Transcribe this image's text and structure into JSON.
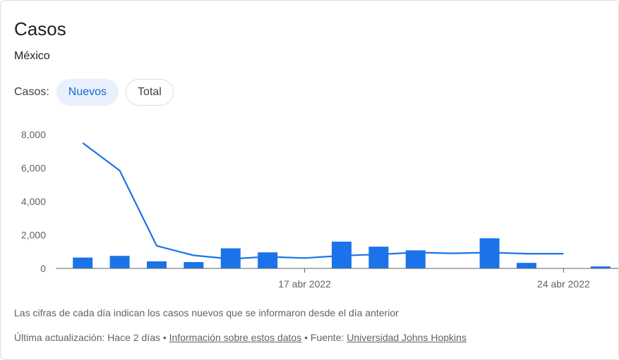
{
  "card": {
    "title": "Casos",
    "subtitle": "México"
  },
  "tabs": {
    "label": "Casos:",
    "items": [
      {
        "label": "Nuevos",
        "active": true
      },
      {
        "label": "Total",
        "active": false
      }
    ]
  },
  "chart_data": {
    "type": "bar",
    "x": [
      "11 abr 2022",
      "12 abr 2022",
      "13 abr 2022",
      "14 abr 2022",
      "15 abr 2022",
      "16 abr 2022",
      "17 abr 2022",
      "18 abr 2022",
      "19 abr 2022",
      "20 abr 2022",
      "21 abr 2022",
      "22 abr 2022",
      "23 abr 2022",
      "24 abr 2022",
      "25 abr 2022"
    ],
    "series": [
      {
        "type": "bar",
        "values": [
          650,
          750,
          420,
          380,
          1200,
          960,
          0,
          1600,
          1300,
          1080,
          0,
          1800,
          330,
          0,
          120
        ],
        "color": "#1a73e8"
      },
      {
        "type": "line",
        "values": [
          7500,
          5850,
          1350,
          780,
          570,
          700,
          620,
          760,
          840,
          950,
          900,
          950,
          880,
          880,
          null
        ],
        "color": "#1a73e8"
      }
    ],
    "ylim": [
      0,
      8000
    ],
    "yticks": [
      0,
      2000,
      4000,
      6000,
      8000
    ],
    "ytick_labels": [
      "0",
      "2,000",
      "4,000",
      "6,000",
      "8,000"
    ],
    "xtick_labels": [
      {
        "index": 6,
        "label": "17 abr 2022"
      },
      {
        "index": 13,
        "label": "24 abr 2022"
      }
    ],
    "grid": false
  },
  "note": "Las cifras de cada día indican los casos nuevos que se informaron desde el día anterior",
  "footer": {
    "prefix": "Última actualización: Hace 2 días • ",
    "info_link": "Información sobre estos datos",
    "middle": " • Fuente: ",
    "source_link": "Universidad Johns Hopkins"
  }
}
